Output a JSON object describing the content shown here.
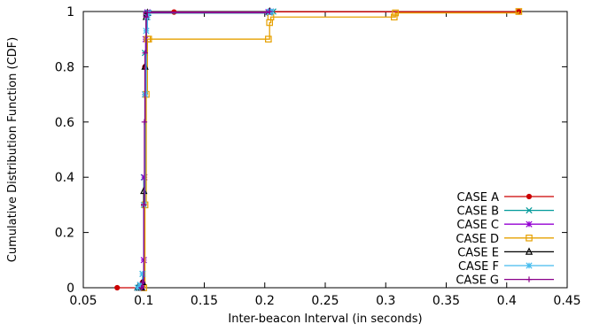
{
  "chart_data": {
    "type": "line",
    "title": "",
    "xlabel": "Inter-beacon Interval (in seconds)",
    "ylabel": "Cumulative Distribution Function (CDF)",
    "xlim": [
      0.05,
      0.45
    ],
    "ylim": [
      0,
      1
    ],
    "xticks": [
      "0.05",
      "0.1",
      "0.15",
      "0.2",
      "0.25",
      "0.3",
      "0.35",
      "0.4",
      "0.45"
    ],
    "yticks": [
      "0",
      "0.2",
      "0.4",
      "0.6",
      "0.8",
      "1"
    ],
    "grid": false,
    "legend_position": "bottom-right",
    "series": [
      {
        "name": "CASE A",
        "color": "#cc0000",
        "marker": "circle",
        "x": [
          0.078,
          0.098,
          0.099,
          0.1,
          0.101,
          0.102,
          0.103,
          0.125,
          0.204,
          0.41
        ],
        "y": [
          0.0,
          0.0,
          0.02,
          0.3,
          0.8,
          0.99,
          0.997,
          0.998,
          0.999,
          1.0
        ]
      },
      {
        "name": "CASE B",
        "color": "#009999",
        "marker": "x",
        "x": [
          0.096,
          0.097,
          0.099,
          0.1,
          0.101,
          0.102,
          0.103,
          0.204,
          0.205,
          0.207
        ],
        "y": [
          0.0,
          0.01,
          0.05,
          0.4,
          0.85,
          0.99,
          0.995,
          0.996,
          0.999,
          1.0
        ]
      },
      {
        "name": "CASE C",
        "color": "#9400d3",
        "marker": "star",
        "x": [
          0.099,
          0.1,
          0.1005,
          0.101,
          0.1015,
          0.102,
          0.103,
          0.203,
          0.205
        ],
        "y": [
          0.0,
          0.1,
          0.4,
          0.7,
          0.9,
          0.99,
          0.997,
          0.998,
          1.0
        ]
      },
      {
        "name": "CASE D",
        "color": "#e6a000",
        "marker": "square",
        "x": [
          0.1,
          0.101,
          0.102,
          0.103,
          0.104,
          0.203,
          0.204,
          0.205,
          0.307,
          0.308,
          0.41
        ],
        "y": [
          0.0,
          0.3,
          0.7,
          0.9,
          0.9,
          0.9,
          0.96,
          0.98,
          0.98,
          0.995,
          1.0
        ]
      },
      {
        "name": "CASE E",
        "color": "#000000",
        "marker": "triangle",
        "x": [
          0.095,
          0.098,
          0.099,
          0.1,
          0.101,
          0.102,
          0.103,
          0.204
        ],
        "y": [
          0.0,
          0.0,
          0.02,
          0.35,
          0.8,
          0.98,
          0.995,
          1.0
        ]
      },
      {
        "name": "CASE F",
        "color": "#44bbee",
        "marker": "asterisk",
        "x": [
          0.095,
          0.097,
          0.099,
          0.1,
          0.101,
          0.102,
          0.103,
          0.104,
          0.204,
          0.205
        ],
        "y": [
          0.0,
          0.01,
          0.05,
          0.3,
          0.7,
          0.93,
          0.98,
          0.995,
          0.998,
          1.0
        ]
      },
      {
        "name": "CASE G",
        "color": "#8b008b",
        "marker": "plus",
        "x": [
          0.098,
          0.099,
          0.1,
          0.1005,
          0.101,
          0.102,
          0.103,
          0.204
        ],
        "y": [
          0.0,
          0.02,
          0.3,
          0.6,
          0.85,
          0.98,
          0.996,
          1.0
        ]
      }
    ]
  }
}
